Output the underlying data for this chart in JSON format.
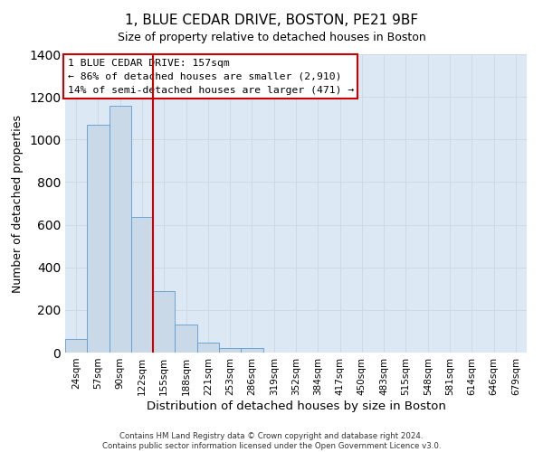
{
  "title": "1, BLUE CEDAR DRIVE, BOSTON, PE21 9BF",
  "subtitle": "Size of property relative to detached houses in Boston",
  "xlabel": "Distribution of detached houses by size in Boston",
  "ylabel": "Number of detached properties",
  "bar_labels": [
    "24sqm",
    "57sqm",
    "90sqm",
    "122sqm",
    "155sqm",
    "188sqm",
    "221sqm",
    "253sqm",
    "286sqm",
    "319sqm",
    "352sqm",
    "384sqm",
    "417sqm",
    "450sqm",
    "483sqm",
    "515sqm",
    "548sqm",
    "581sqm",
    "614sqm",
    "646sqm",
    "679sqm"
  ],
  "bar_values": [
    65,
    1070,
    1160,
    635,
    290,
    130,
    47,
    20,
    20,
    0,
    0,
    0,
    0,
    0,
    0,
    0,
    0,
    0,
    0,
    0,
    0
  ],
  "bar_color": "#c9d9e8",
  "bar_edge_color": "#5b9bd5",
  "vline_color": "#cc0000",
  "vline_x_index": 3.5,
  "ylim": [
    0,
    1400
  ],
  "yticks": [
    0,
    200,
    400,
    600,
    800,
    1000,
    1200,
    1400
  ],
  "annotation_title": "1 BLUE CEDAR DRIVE: 157sqm",
  "annotation_line1": "← 86% of detached houses are smaller (2,910)",
  "annotation_line2": "14% of semi-detached houses are larger (471) →",
  "annotation_box_color": "#ffffff",
  "annotation_box_edge_color": "#cc0000",
  "footer1": "Contains HM Land Registry data © Crown copyright and database right 2024.",
  "footer2": "Contains public sector information licensed under the Open Government Licence v3.0.",
  "grid_color": "#d0d8e0",
  "background_color": "#dce9f5",
  "fig_width": 6.0,
  "fig_height": 5.0
}
